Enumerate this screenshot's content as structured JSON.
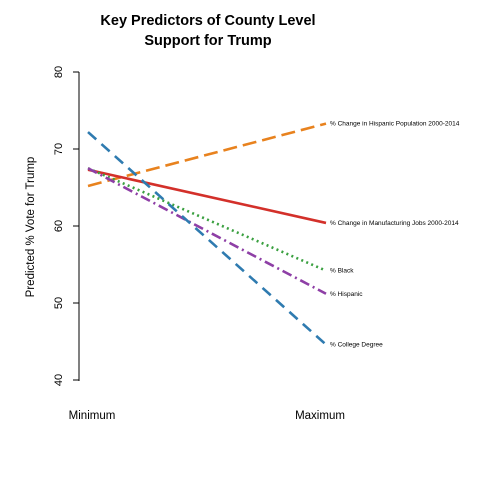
{
  "chart_data": {
    "type": "line",
    "title_lines": [
      "Key Predictors of County Level",
      "Support for Trump"
    ],
    "ylabel": "Predicted % Vote for Trump",
    "xlabel": "",
    "x": [
      "Minimum",
      "Maximum"
    ],
    "ylim": [
      38,
      82
    ],
    "yticks": [
      40,
      50,
      60,
      70,
      80
    ],
    "grid": false,
    "legend": "none (series labeled at line ends)",
    "series": [
      {
        "name": "% Change in Hispanic Population 2000-2014",
        "values": [
          65.2,
          73.3
        ],
        "color": "#e8821e",
        "dash": "long-dash"
      },
      {
        "name": "% Change in Manufacturing Jobs 2000-2014",
        "values": [
          67.3,
          60.4
        ],
        "color": "#d3302a",
        "dash": "solid"
      },
      {
        "name": "% Black",
        "values": [
          67.5,
          54.2
        ],
        "color": "#3aa040",
        "dash": "dotted"
      },
      {
        "name": "% Hispanic",
        "values": [
          67.5,
          51.2
        ],
        "color": "#8e3fa6",
        "dash": "dash-dot"
      },
      {
        "name": "% College Degree",
        "values": [
          72.2,
          44.6
        ],
        "color": "#2f7bb0",
        "dash": "dashed"
      }
    ]
  }
}
